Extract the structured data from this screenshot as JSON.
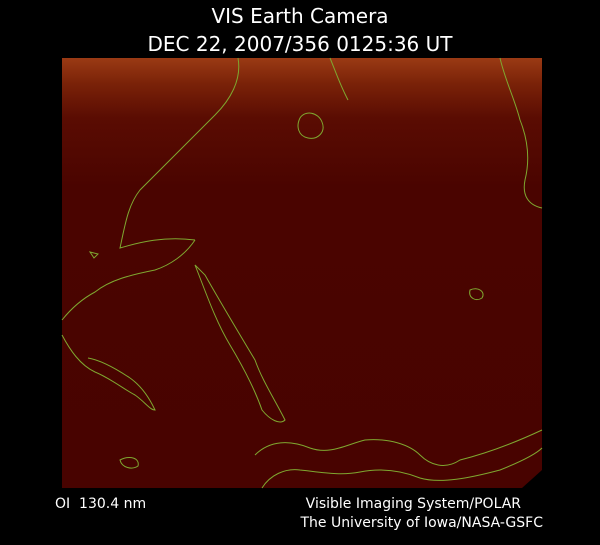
{
  "header": {
    "title": "VIS Earth Camera",
    "timestamp": "DEC 22, 2007/356 0125:36 UT"
  },
  "footer": {
    "filter": "OI  130.4 nm",
    "instrument": "Visible Imaging System/POLAR",
    "institution": "The University of Iowa/NASA-GSFC"
  }
}
